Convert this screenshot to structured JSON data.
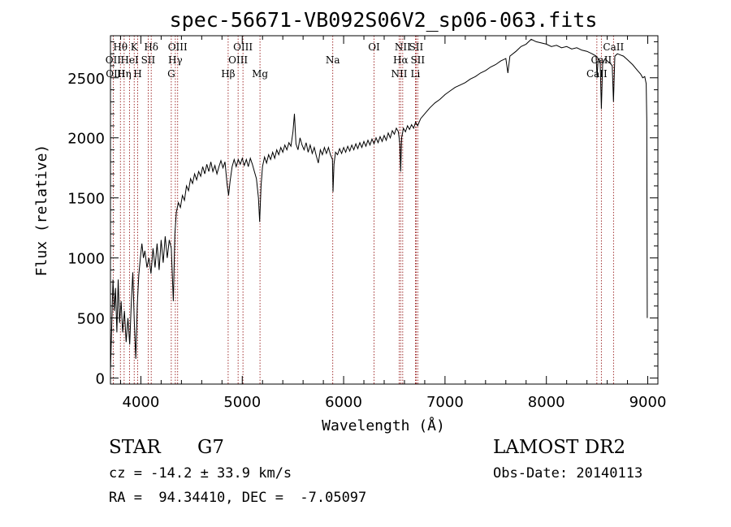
{
  "chart_data": {
    "type": "line",
    "title": "spec-56671-VB092S06V2_sp06-063.fits",
    "xlabel": "Wavelength (Å)",
    "ylabel": "Flux (relative)",
    "xlim": [
      3700,
      9100
    ],
    "ylim": [
      -50,
      2850
    ],
    "x_ticks": [
      4000,
      5000,
      6000,
      7000,
      8000,
      9000
    ],
    "y_ticks": [
      0,
      500,
      1000,
      1500,
      2000,
      2500
    ],
    "x_tick_labels": [
      "4000",
      "5000",
      "6000",
      "7000",
      "8000",
      "9000"
    ],
    "y_tick_labels": [
      "0",
      "500",
      "1000",
      "1500",
      "2000",
      "2500"
    ],
    "grid": false,
    "line_color": "#000000",
    "marker_color": "#8b0000",
    "series": [
      {
        "values": [
          [
            3700,
            60
          ],
          [
            3712,
            420
          ],
          [
            3725,
            820
          ],
          [
            3738,
            560
          ],
          [
            3750,
            750
          ],
          [
            3763,
            380
          ],
          [
            3776,
            820
          ],
          [
            3790,
            460
          ],
          [
            3805,
            640
          ],
          [
            3820,
            380
          ],
          [
            3838,
            560
          ],
          [
            3855,
            300
          ],
          [
            3872,
            500
          ],
          [
            3890,
            280
          ],
          [
            3905,
            620
          ],
          [
            3920,
            880
          ],
          [
            3935,
            480
          ],
          [
            3950,
            160
          ],
          [
            3965,
            620
          ],
          [
            3980,
            860
          ],
          [
            3995,
            1000
          ],
          [
            4010,
            1120
          ],
          [
            4025,
            1000
          ],
          [
            4040,
            1060
          ],
          [
            4060,
            920
          ],
          [
            4080,
            1000
          ],
          [
            4100,
            870
          ],
          [
            4120,
            1080
          ],
          [
            4140,
            920
          ],
          [
            4160,
            1120
          ],
          [
            4180,
            900
          ],
          [
            4200,
            1150
          ],
          [
            4220,
            960
          ],
          [
            4240,
            1180
          ],
          [
            4260,
            1000
          ],
          [
            4280,
            1150
          ],
          [
            4300,
            1080
          ],
          [
            4320,
            640
          ],
          [
            4335,
            1200
          ],
          [
            4350,
            1380
          ],
          [
            4370,
            1460
          ],
          [
            4390,
            1420
          ],
          [
            4410,
            1520
          ],
          [
            4430,
            1480
          ],
          [
            4450,
            1600
          ],
          [
            4470,
            1560
          ],
          [
            4490,
            1660
          ],
          [
            4510,
            1620
          ],
          [
            4530,
            1700
          ],
          [
            4550,
            1650
          ],
          [
            4570,
            1720
          ],
          [
            4590,
            1680
          ],
          [
            4610,
            1760
          ],
          [
            4630,
            1700
          ],
          [
            4650,
            1780
          ],
          [
            4670,
            1720
          ],
          [
            4690,
            1800
          ],
          [
            4710,
            1720
          ],
          [
            4730,
            1770
          ],
          [
            4750,
            1700
          ],
          [
            4770,
            1760
          ],
          [
            4790,
            1810
          ],
          [
            4810,
            1750
          ],
          [
            4830,
            1800
          ],
          [
            4850,
            1620
          ],
          [
            4865,
            1520
          ],
          [
            4880,
            1640
          ],
          [
            4900,
            1760
          ],
          [
            4920,
            1820
          ],
          [
            4940,
            1760
          ],
          [
            4960,
            1820
          ],
          [
            4980,
            1780
          ],
          [
            5000,
            1830
          ],
          [
            5020,
            1770
          ],
          [
            5040,
            1820
          ],
          [
            5060,
            1760
          ],
          [
            5080,
            1830
          ],
          [
            5100,
            1780
          ],
          [
            5120,
            1720
          ],
          [
            5140,
            1660
          ],
          [
            5160,
            1500
          ],
          [
            5172,
            1300
          ],
          [
            5185,
            1600
          ],
          [
            5200,
            1760
          ],
          [
            5220,
            1840
          ],
          [
            5240,
            1790
          ],
          [
            5260,
            1860
          ],
          [
            5280,
            1820
          ],
          [
            5300,
            1880
          ],
          [
            5320,
            1830
          ],
          [
            5340,
            1900
          ],
          [
            5360,
            1860
          ],
          [
            5380,
            1920
          ],
          [
            5400,
            1880
          ],
          [
            5420,
            1940
          ],
          [
            5440,
            1900
          ],
          [
            5460,
            1960
          ],
          [
            5480,
            1930
          ],
          [
            5500,
            2050
          ],
          [
            5515,
            2200
          ],
          [
            5530,
            1950
          ],
          [
            5550,
            1900
          ],
          [
            5570,
            2000
          ],
          [
            5590,
            1940
          ],
          [
            5610,
            1900
          ],
          [
            5630,
            1960
          ],
          [
            5650,
            1880
          ],
          [
            5670,
            1940
          ],
          [
            5690,
            1870
          ],
          [
            5710,
            1920
          ],
          [
            5730,
            1850
          ],
          [
            5750,
            1790
          ],
          [
            5770,
            1900
          ],
          [
            5790,
            1860
          ],
          [
            5810,
            1920
          ],
          [
            5830,
            1870
          ],
          [
            5850,
            1920
          ],
          [
            5870,
            1860
          ],
          [
            5890,
            1820
          ],
          [
            5895,
            1550
          ],
          [
            5905,
            1780
          ],
          [
            5920,
            1880
          ],
          [
            5940,
            1860
          ],
          [
            5960,
            1910
          ],
          [
            5980,
            1870
          ],
          [
            6000,
            1920
          ],
          [
            6020,
            1880
          ],
          [
            6040,
            1930
          ],
          [
            6060,
            1890
          ],
          [
            6080,
            1940
          ],
          [
            6100,
            1900
          ],
          [
            6120,
            1950
          ],
          [
            6140,
            1910
          ],
          [
            6160,
            1960
          ],
          [
            6180,
            1920
          ],
          [
            6200,
            1970
          ],
          [
            6220,
            1930
          ],
          [
            6240,
            1980
          ],
          [
            6260,
            1940
          ],
          [
            6280,
            1990
          ],
          [
            6300,
            1950
          ],
          [
            6320,
            2000
          ],
          [
            6340,
            1960
          ],
          [
            6360,
            2010
          ],
          [
            6380,
            1970
          ],
          [
            6400,
            2020
          ],
          [
            6420,
            1980
          ],
          [
            6440,
            2040
          ],
          [
            6460,
            2000
          ],
          [
            6480,
            2060
          ],
          [
            6500,
            2030
          ],
          [
            6520,
            2080
          ],
          [
            6540,
            2050
          ],
          [
            6555,
            1950
          ],
          [
            6563,
            1720
          ],
          [
            6572,
            2000
          ],
          [
            6590,
            2080
          ],
          [
            6610,
            2050
          ],
          [
            6630,
            2100
          ],
          [
            6650,
            2070
          ],
          [
            6670,
            2110
          ],
          [
            6690,
            2080
          ],
          [
            6710,
            2130
          ],
          [
            6730,
            2100
          ],
          [
            6760,
            2160
          ],
          [
            6800,
            2200
          ],
          [
            6850,
            2250
          ],
          [
            6900,
            2290
          ],
          [
            6950,
            2320
          ],
          [
            7000,
            2360
          ],
          [
            7050,
            2390
          ],
          [
            7100,
            2420
          ],
          [
            7150,
            2440
          ],
          [
            7200,
            2460
          ],
          [
            7250,
            2490
          ],
          [
            7300,
            2510
          ],
          [
            7350,
            2540
          ],
          [
            7400,
            2560
          ],
          [
            7450,
            2590
          ],
          [
            7500,
            2610
          ],
          [
            7550,
            2640
          ],
          [
            7600,
            2660
          ],
          [
            7620,
            2540
          ],
          [
            7640,
            2680
          ],
          [
            7700,
            2720
          ],
          [
            7750,
            2760
          ],
          [
            7800,
            2780
          ],
          [
            7850,
            2820
          ],
          [
            7900,
            2800
          ],
          [
            7950,
            2790
          ],
          [
            8000,
            2780
          ],
          [
            8050,
            2760
          ],
          [
            8100,
            2770
          ],
          [
            8150,
            2750
          ],
          [
            8200,
            2760
          ],
          [
            8250,
            2740
          ],
          [
            8300,
            2750
          ],
          [
            8350,
            2730
          ],
          [
            8400,
            2720
          ],
          [
            8450,
            2700
          ],
          [
            8490,
            2680
          ],
          [
            8500,
            2500
          ],
          [
            8510,
            2660
          ],
          [
            8530,
            2640
          ],
          [
            8542,
            2240
          ],
          [
            8555,
            2620
          ],
          [
            8580,
            2660
          ],
          [
            8600,
            2640
          ],
          [
            8630,
            2620
          ],
          [
            8650,
            2600
          ],
          [
            8662,
            2300
          ],
          [
            8675,
            2680
          ],
          [
            8700,
            2700
          ],
          [
            8730,
            2690
          ],
          [
            8760,
            2680
          ],
          [
            8800,
            2650
          ],
          [
            8850,
            2610
          ],
          [
            8900,
            2560
          ],
          [
            8930,
            2530
          ],
          [
            8950,
            2500
          ],
          [
            8970,
            2510
          ],
          [
            8985,
            2450
          ],
          [
            8990,
            2150
          ],
          [
            8995,
            500
          ]
        ]
      }
    ],
    "annotations": [
      {
        "label": "Hθ",
        "x": 3798,
        "row": 1,
        "line": true
      },
      {
        "label": "K",
        "x": 3934,
        "row": 1,
        "line": true
      },
      {
        "label": "Hδ",
        "x": 4102,
        "row": 1,
        "line": true
      },
      {
        "label": "OIII",
        "x": 4363,
        "row": 1,
        "line": true
      },
      {
        "label": "OIII",
        "x": 5007,
        "row": 1,
        "line": true
      },
      {
        "label": "OI",
        "x": 6300,
        "row": 1,
        "line": true
      },
      {
        "label": "NII",
        "x": 6583,
        "row": 1,
        "line": true
      },
      {
        "label": "SII",
        "x": 6716,
        "row": 1,
        "line": true
      },
      {
        "label": "CaII",
        "x": 8662,
        "row": 1,
        "line": true
      },
      {
        "label": "OII",
        "x": 3727,
        "row": 2,
        "line": true
      },
      {
        "label": "HeI",
        "x": 3889,
        "row": 2,
        "line": true
      },
      {
        "label": "SII",
        "x": 4072,
        "row": 2,
        "line": true
      },
      {
        "label": "Hγ",
        "x": 4340,
        "row": 2,
        "line": true
      },
      {
        "label": "OIII",
        "x": 4959,
        "row": 2,
        "line": true
      },
      {
        "label": "Na",
        "x": 5893,
        "row": 2,
        "line": true
      },
      {
        "label": "Hα",
        "x": 6563,
        "row": 2,
        "line": true
      },
      {
        "label": "SII",
        "x": 6731,
        "row": 2,
        "line": true
      },
      {
        "label": "CaII",
        "x": 8542,
        "row": 2,
        "line": true
      },
      {
        "label": "OIII",
        "x": 3750,
        "row": 3,
        "line": false
      },
      {
        "label": "Hη",
        "x": 3835,
        "row": 3,
        "line": true
      },
      {
        "label": "H",
        "x": 3968,
        "row": 3,
        "line": true
      },
      {
        "label": "G",
        "x": 4300,
        "row": 3,
        "line": true
      },
      {
        "label": "Hβ",
        "x": 4861,
        "row": 3,
        "line": true
      },
      {
        "label": "Mg",
        "x": 5175,
        "row": 3,
        "line": true
      },
      {
        "label": "NII",
        "x": 6548,
        "row": 3,
        "line": true
      },
      {
        "label": "Li",
        "x": 6708,
        "row": 3,
        "line": true
      },
      {
        "label": "CaII",
        "x": 8498,
        "row": 3,
        "line": true
      }
    ]
  },
  "info": {
    "class_label": "STAR",
    "subclass": "G7",
    "cz": "cz = -14.2 ± 33.9 km/s",
    "coords": "RA =  94.34410, DEC =  -7.05097",
    "survey": "LAMOST DR2",
    "obs_date": "Obs-Date: 20140113"
  }
}
